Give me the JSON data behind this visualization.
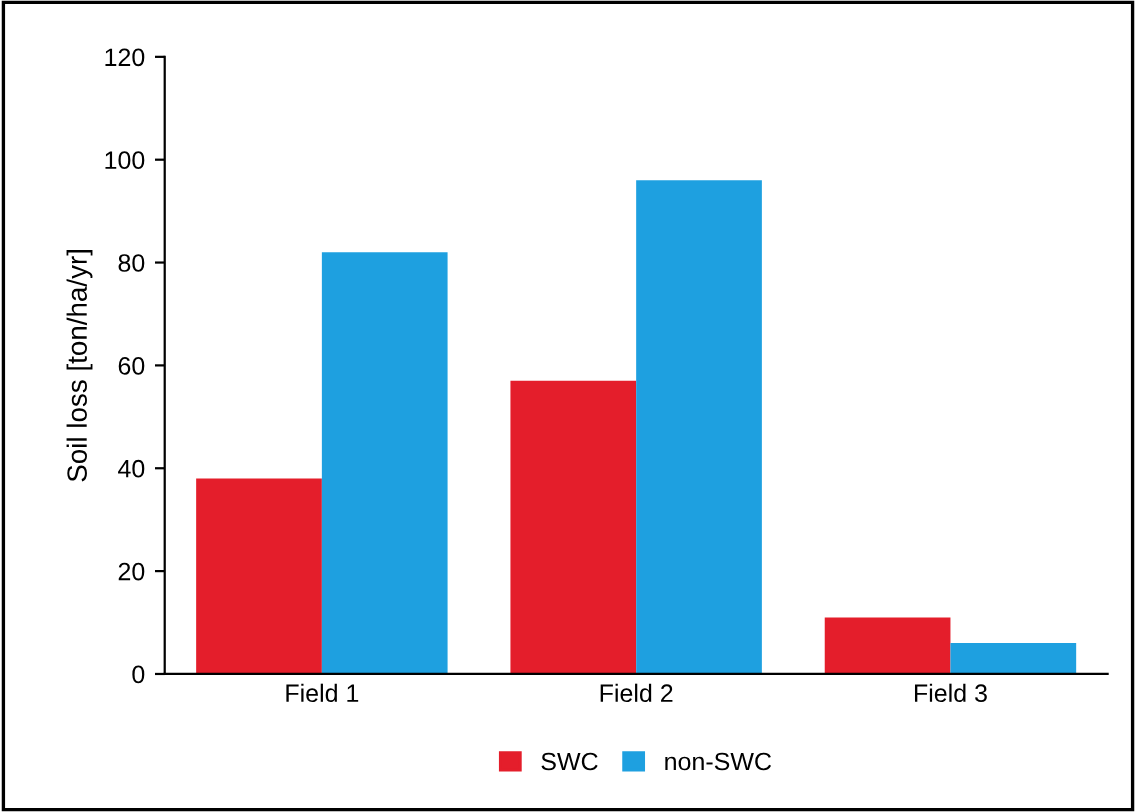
{
  "chart_data": {
    "type": "bar",
    "ylabel": "Soil loss [ton/ha/yr]",
    "categories": [
      "Field 1",
      "Field 2",
      "Field 3"
    ],
    "series": [
      {
        "name": "SWC",
        "color": "#e41e2b",
        "values": [
          38,
          57,
          11
        ]
      },
      {
        "name": "non-SWC",
        "color": "#1ea0e0",
        "values": [
          82,
          96,
          6
        ]
      }
    ],
    "ylim": [
      0,
      120
    ],
    "yticks": [
      0,
      20,
      40,
      60,
      80,
      100,
      120
    ],
    "grid": false,
    "legend": "bottom"
  }
}
